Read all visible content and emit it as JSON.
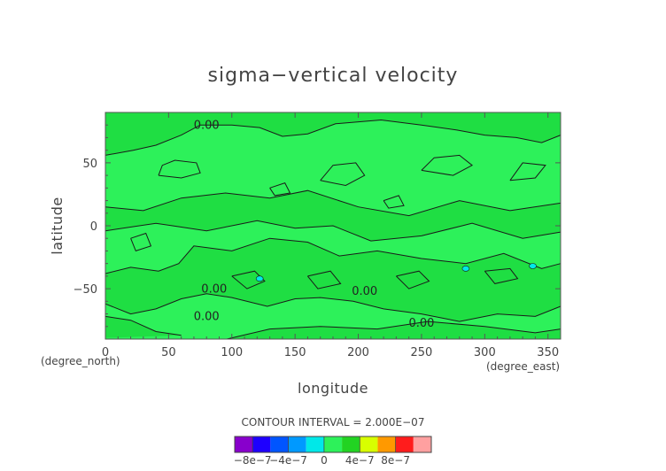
{
  "chart_data": {
    "type": "heatmap",
    "title": "sigma−vertical velocity",
    "xlabel": "longitude",
    "ylabel": "latitude",
    "x_unit": "(degree_east)",
    "y_unit": "(degree_north)",
    "xlim": [
      0,
      360
    ],
    "ylim": [
      -90,
      90
    ],
    "x_ticks": [
      0,
      50,
      100,
      150,
      200,
      250,
      300,
      350
    ],
    "y_ticks": [
      -50,
      0,
      50
    ],
    "x_tick_labels": [
      "0",
      "50",
      "100",
      "150",
      "200",
      "250",
      "300",
      "350"
    ],
    "y_tick_labels": [
      "−50",
      "0",
      "50"
    ],
    "contour_interval_text": "CONTOUR INTERVAL = 2.000E−07",
    "contour_labels": [
      {
        "text": "0.00",
        "lon": 80,
        "lat": 77
      },
      {
        "text": "0.00",
        "lon": 86,
        "lat": -53
      },
      {
        "text": "0.00",
        "lon": 80,
        "lat": -75
      },
      {
        "text": "0.00",
        "lon": 205,
        "lat": -55
      },
      {
        "text": "0.00",
        "lon": 250,
        "lat": -80
      }
    ],
    "background_field_color": "#2df15a",
    "regions": [
      {
        "polygon": [
          [
            0,
            56
          ],
          [
            22,
            60
          ],
          [
            40,
            64
          ],
          [
            60,
            72
          ],
          [
            75,
            80
          ],
          [
            100,
            80
          ],
          [
            122,
            78
          ],
          [
            140,
            71
          ],
          [
            160,
            73
          ],
          [
            182,
            81
          ],
          [
            218,
            84
          ],
          [
            250,
            80
          ],
          [
            278,
            76
          ],
          [
            300,
            72
          ],
          [
            325,
            70
          ],
          [
            345,
            66
          ],
          [
            360,
            72
          ],
          [
            360,
            90
          ],
          [
            0,
            90
          ]
        ],
        "color": "#1fde43"
      },
      {
        "polygon": [
          [
            0,
            -38
          ],
          [
            20,
            -33
          ],
          [
            42,
            -36
          ],
          [
            58,
            -30
          ],
          [
            70,
            -16
          ],
          [
            100,
            -20
          ],
          [
            130,
            -10
          ],
          [
            160,
            -13
          ],
          [
            185,
            -24
          ],
          [
            215,
            -20
          ],
          [
            250,
            -26
          ],
          [
            285,
            -30
          ],
          [
            315,
            -22
          ],
          [
            345,
            -34
          ],
          [
            360,
            -30
          ],
          [
            360,
            -64
          ],
          [
            340,
            -72
          ],
          [
            310,
            -70
          ],
          [
            280,
            -76
          ],
          [
            250,
            -70
          ],
          [
            220,
            -66
          ],
          [
            196,
            -60
          ],
          [
            170,
            -57
          ],
          [
            150,
            -58
          ],
          [
            128,
            -64
          ],
          [
            100,
            -57
          ],
          [
            80,
            -54
          ],
          [
            60,
            -58
          ],
          [
            40,
            -66
          ],
          [
            20,
            -70
          ],
          [
            0,
            -62
          ]
        ],
        "color": "#1fde43"
      },
      {
        "polygon": [
          [
            0,
            15
          ],
          [
            30,
            12
          ],
          [
            60,
            22
          ],
          [
            95,
            26
          ],
          [
            130,
            22
          ],
          [
            160,
            28
          ],
          [
            200,
            15
          ],
          [
            240,
            8
          ],
          [
            280,
            20
          ],
          [
            320,
            12
          ],
          [
            360,
            18
          ],
          [
            360,
            -5
          ],
          [
            330,
            -10
          ],
          [
            290,
            2
          ],
          [
            250,
            -8
          ],
          [
            210,
            -12
          ],
          [
            180,
            0
          ],
          [
            150,
            -2
          ],
          [
            120,
            4
          ],
          [
            80,
            -4
          ],
          [
            40,
            2
          ],
          [
            0,
            -4
          ]
        ],
        "color": "#1fde43"
      },
      {
        "polygon": [
          [
            0,
            -72
          ],
          [
            20,
            -75
          ],
          [
            40,
            -84
          ],
          [
            60,
            -87
          ],
          [
            0,
            -89
          ]
        ],
        "color": "#1fde43"
      },
      {
        "polygon": [
          [
            96,
            -90
          ],
          [
            130,
            -82
          ],
          [
            170,
            -80
          ],
          [
            215,
            -82
          ],
          [
            255,
            -76
          ],
          [
            300,
            -80
          ],
          [
            340,
            -85
          ],
          [
            360,
            -82
          ],
          [
            360,
            -90
          ]
        ],
        "color": "#1fde43"
      }
    ],
    "contours": [
      {
        "points": [
          [
            0,
            56
          ],
          [
            22,
            60
          ],
          [
            40,
            64
          ],
          [
            60,
            72
          ],
          [
            75,
            80
          ],
          [
            100,
            80
          ],
          [
            122,
            78
          ],
          [
            140,
            71
          ],
          [
            160,
            73
          ],
          [
            182,
            81
          ],
          [
            218,
            84
          ],
          [
            250,
            80
          ],
          [
            278,
            76
          ],
          [
            300,
            72
          ],
          [
            325,
            70
          ],
          [
            345,
            66
          ],
          [
            360,
            72
          ]
        ]
      },
      {
        "points": [
          [
            0,
            -38
          ],
          [
            20,
            -33
          ],
          [
            42,
            -36
          ],
          [
            58,
            -30
          ],
          [
            70,
            -16
          ],
          [
            100,
            -20
          ],
          [
            130,
            -10
          ],
          [
            160,
            -13
          ],
          [
            185,
            -24
          ],
          [
            215,
            -20
          ],
          [
            250,
            -26
          ],
          [
            285,
            -30
          ],
          [
            315,
            -22
          ],
          [
            345,
            -34
          ],
          [
            360,
            -30
          ]
        ]
      },
      {
        "points": [
          [
            0,
            -62
          ],
          [
            20,
            -70
          ],
          [
            40,
            -66
          ],
          [
            60,
            -58
          ],
          [
            80,
            -54
          ],
          [
            100,
            -57
          ],
          [
            128,
            -64
          ],
          [
            150,
            -58
          ],
          [
            170,
            -57
          ],
          [
            196,
            -60
          ],
          [
            220,
            -66
          ],
          [
            250,
            -70
          ],
          [
            280,
            -76
          ],
          [
            310,
            -70
          ],
          [
            340,
            -72
          ],
          [
            360,
            -64
          ]
        ]
      },
      {
        "points": [
          [
            0,
            15
          ],
          [
            30,
            12
          ],
          [
            60,
            22
          ],
          [
            95,
            26
          ],
          [
            130,
            22
          ],
          [
            160,
            28
          ],
          [
            200,
            15
          ],
          [
            240,
            8
          ],
          [
            280,
            20
          ],
          [
            320,
            12
          ],
          [
            360,
            18
          ]
        ]
      },
      {
        "points": [
          [
            0,
            -4
          ],
          [
            40,
            2
          ],
          [
            80,
            -4
          ],
          [
            120,
            4
          ],
          [
            150,
            -2
          ],
          [
            180,
            0
          ],
          [
            210,
            -12
          ],
          [
            250,
            -8
          ],
          [
            290,
            2
          ],
          [
            330,
            -10
          ],
          [
            360,
            -5
          ]
        ]
      },
      {
        "points": [
          [
            0,
            -72
          ],
          [
            20,
            -75
          ],
          [
            40,
            -84
          ],
          [
            60,
            -87
          ]
        ]
      },
      {
        "points": [
          [
            96,
            -90
          ],
          [
            130,
            -82
          ],
          [
            170,
            -80
          ],
          [
            215,
            -82
          ],
          [
            255,
            -76
          ],
          [
            300,
            -80
          ],
          [
            340,
            -85
          ],
          [
            360,
            -82
          ]
        ]
      },
      {
        "points": [
          [
            42,
            40
          ],
          [
            60,
            38
          ],
          [
            75,
            42
          ],
          [
            72,
            50
          ],
          [
            55,
            52
          ],
          [
            45,
            48
          ],
          [
            42,
            40
          ]
        ]
      },
      {
        "points": [
          [
            170,
            36
          ],
          [
            190,
            32
          ],
          [
            205,
            40
          ],
          [
            198,
            50
          ],
          [
            180,
            48
          ],
          [
            170,
            36
          ]
        ]
      },
      {
        "points": [
          [
            250,
            44
          ],
          [
            275,
            40
          ],
          [
            290,
            48
          ],
          [
            280,
            56
          ],
          [
            260,
            54
          ],
          [
            250,
            44
          ]
        ]
      },
      {
        "points": [
          [
            320,
            36
          ],
          [
            340,
            38
          ],
          [
            348,
            48
          ],
          [
            330,
            50
          ],
          [
            320,
            36
          ]
        ]
      },
      {
        "points": [
          [
            100,
            -40
          ],
          [
            118,
            -36
          ],
          [
            126,
            -44
          ],
          [
            112,
            -50
          ],
          [
            100,
            -40
          ]
        ]
      },
      {
        "points": [
          [
            160,
            -40
          ],
          [
            178,
            -36
          ],
          [
            186,
            -46
          ],
          [
            168,
            -50
          ],
          [
            160,
            -40
          ]
        ]
      },
      {
        "points": [
          [
            230,
            -40
          ],
          [
            248,
            -36
          ],
          [
            256,
            -44
          ],
          [
            240,
            -50
          ],
          [
            230,
            -40
          ]
        ]
      },
      {
        "points": [
          [
            300,
            -36
          ],
          [
            320,
            -34
          ],
          [
            326,
            -42
          ],
          [
            308,
            -46
          ],
          [
            300,
            -36
          ]
        ]
      },
      {
        "points": [
          [
            20,
            -10
          ],
          [
            32,
            -6
          ],
          [
            36,
            -16
          ],
          [
            24,
            -20
          ],
          [
            20,
            -10
          ]
        ]
      },
      {
        "points": [
          [
            130,
            30
          ],
          [
            142,
            34
          ],
          [
            146,
            26
          ],
          [
            134,
            24
          ],
          [
            130,
            30
          ]
        ]
      },
      {
        "points": [
          [
            220,
            20
          ],
          [
            232,
            24
          ],
          [
            236,
            16
          ],
          [
            224,
            14
          ],
          [
            220,
            20
          ]
        ]
      }
    ],
    "spots": [
      {
        "lon": 122,
        "lat": -42,
        "color": "#00e8e8"
      },
      {
        "lon": 285,
        "lat": -34,
        "color": "#00e8e8"
      },
      {
        "lon": 338,
        "lat": -32,
        "color": "#00e8e8"
      }
    ],
    "colorbar": {
      "levels": [
        -1e-06,
        -8e-07,
        -6e-07,
        -4e-07,
        -2e-07,
        0,
        2e-07,
        4e-07,
        6e-07,
        8e-07,
        1e-06
      ],
      "colors": [
        "#8800cc",
        "#1e00ff",
        "#0055ff",
        "#0099ff",
        "#00e8e8",
        "#2df15a",
        "#22d322",
        "#d8ff00",
        "#ff9900",
        "#ff1c1c",
        "#ffa0a0"
      ],
      "tick_labels": [
        "−8e−7",
        "−4e−7",
        "0",
        "4e−7",
        "8e−7"
      ]
    }
  }
}
